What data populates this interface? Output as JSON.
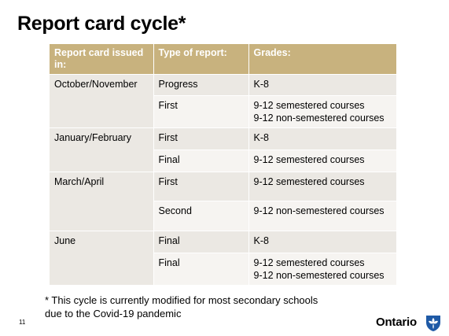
{
  "title": "Report card cycle*",
  "table": {
    "headers": [
      "Report card issued in:",
      "Type of report:",
      "Grades:"
    ],
    "rows": [
      {
        "period": "October/November",
        "type": "Progress",
        "grades": [
          "K-8"
        ]
      },
      {
        "period": "",
        "type": "First",
        "grades": [
          "9-12 semestered courses",
          "9-12 non-semestered courses"
        ]
      },
      {
        "period": "January/February",
        "type": "First",
        "grades": [
          "K-8"
        ]
      },
      {
        "period": "",
        "type": "Final",
        "grades": [
          "9-12 semestered courses"
        ]
      },
      {
        "period": "March/April",
        "type": "First",
        "grades": [
          "9-12 semestered courses"
        ]
      },
      {
        "period": "",
        "type": "Second",
        "grades": [
          "9-12 non-semestered courses"
        ]
      },
      {
        "period": "June",
        "type": "Final",
        "grades": [
          "K-8"
        ]
      },
      {
        "period": "",
        "type": "Final",
        "grades": [
          "9-12 semestered courses",
          "9-12 non-semestered courses"
        ]
      }
    ]
  },
  "footnote": {
    "line1": "* This cycle is currently modified for most secondary schools",
    "line2": "due to the Covid-19 pandemic"
  },
  "page_number": "11",
  "brand": {
    "name": "Ontario",
    "logo_icon": "trillium-icon",
    "logo_color": "#1f5aa6"
  },
  "colors": {
    "header_bg": "#c8b27e",
    "row_dark": "#ebe8e3",
    "row_light": "#f6f4f1"
  }
}
